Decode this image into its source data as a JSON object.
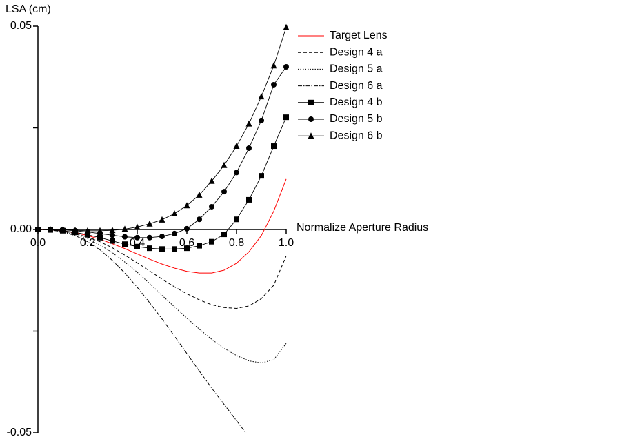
{
  "chart_data": {
    "type": "line",
    "y_label": "LSA (cm)",
    "x_label": "Normalize Aperture Radius",
    "x": [
      0,
      0.05,
      0.1,
      0.15,
      0.2,
      0.25,
      0.3,
      0.35,
      0.4,
      0.45,
      0.5,
      0.55,
      0.6,
      0.65,
      0.7,
      0.75,
      0.8,
      0.85,
      0.9,
      0.95,
      1.0
    ],
    "xlim": [
      0,
      1.0
    ],
    "xticks": [
      {
        "value": 0,
        "label": "0.0"
      },
      0.2,
      0.4,
      0.6,
      0.8,
      {
        "value": 1.0,
        "label": "1.0"
      }
    ],
    "ylim": [
      -0.05,
      0.05
    ],
    "yticks": [
      -0.05,
      {
        "value": 0,
        "label": "0.00"
      },
      0.05
    ],
    "yminor_ticks": [
      -0.025,
      0.025
    ],
    "grid": false,
    "legend": "top-right",
    "series": [
      {
        "name": "Target Lens",
        "color": "#ff0000",
        "dash": "solid",
        "marker": "none",
        "values": [
          0,
          -0.0001,
          -0.0003,
          -0.0008,
          -0.0015,
          -0.0024,
          -0.0035,
          -0.0047,
          -0.006,
          -0.0073,
          -0.0085,
          -0.0095,
          -0.0103,
          -0.0107,
          -0.0107,
          -0.01,
          -0.0083,
          -0.0055,
          -0.0015,
          0.0045,
          0.0124
        ]
      },
      {
        "name": "Design 4 a",
        "color": "#000000",
        "dash": "dashed",
        "marker": "none",
        "values": [
          0,
          -0.0001,
          -0.0004,
          -0.001,
          -0.0019,
          -0.003,
          -0.0045,
          -0.0063,
          -0.0082,
          -0.0102,
          -0.0122,
          -0.0141,
          -0.0158,
          -0.0173,
          -0.0185,
          -0.0192,
          -0.0194,
          -0.0188,
          -0.017,
          -0.0137,
          -0.0065
        ]
      },
      {
        "name": "Design 5 a",
        "color": "#000000",
        "dash": "dotted",
        "marker": "none",
        "values": [
          0,
          -0.0001,
          -0.0005,
          -0.0012,
          -0.0023,
          -0.0038,
          -0.0057,
          -0.008,
          -0.0105,
          -0.0133,
          -0.0162,
          -0.019,
          -0.0218,
          -0.0245,
          -0.027,
          -0.0292,
          -0.031,
          -0.0323,
          -0.0328,
          -0.032,
          -0.028
        ]
      },
      {
        "name": "Design 6 a",
        "color": "#000000",
        "dash": "dashdot",
        "marker": "none",
        "values": [
          0,
          -0.0001,
          -0.0006,
          -0.0015,
          -0.003,
          -0.005,
          -0.0076,
          -0.0107,
          -0.0142,
          -0.018,
          -0.022,
          -0.0262,
          -0.0305,
          -0.0348,
          -0.039,
          -0.043,
          -0.047,
          -0.051,
          null,
          null,
          null
        ]
      },
      {
        "name": "Design 4 b",
        "color": "#000000",
        "dash": "solid",
        "marker": "square",
        "values": [
          0,
          -0.0001,
          -0.0003,
          -0.0007,
          -0.0013,
          -0.002,
          -0.0028,
          -0.0036,
          -0.0042,
          -0.0046,
          -0.0048,
          -0.0048,
          -0.0046,
          -0.004,
          -0.003,
          -0.0012,
          0.0025,
          0.0073,
          0.0132,
          0.0205,
          0.0276
        ]
      },
      {
        "name": "Design 5 b",
        "color": "#000000",
        "dash": "solid",
        "marker": "circle",
        "values": [
          0,
          0,
          -0.0001,
          -0.0003,
          -0.0006,
          -0.001,
          -0.0014,
          -0.0018,
          -0.002,
          -0.002,
          -0.0017,
          -0.001,
          0.0002,
          0.0025,
          0.0056,
          0.0093,
          0.014,
          0.02,
          0.0268,
          0.0356,
          0.04
        ]
      },
      {
        "name": "Design 6 b",
        "color": "#000000",
        "dash": "solid",
        "marker": "triangle",
        "values": [
          0,
          0,
          -0.0001,
          -0.0002,
          -0.0003,
          -0.0003,
          -0.0002,
          0.0001,
          0.0006,
          0.0014,
          0.0024,
          0.0039,
          0.0059,
          0.0085,
          0.0119,
          0.0158,
          0.0205,
          0.026,
          0.0327,
          0.0403,
          0.0497
        ]
      }
    ]
  }
}
